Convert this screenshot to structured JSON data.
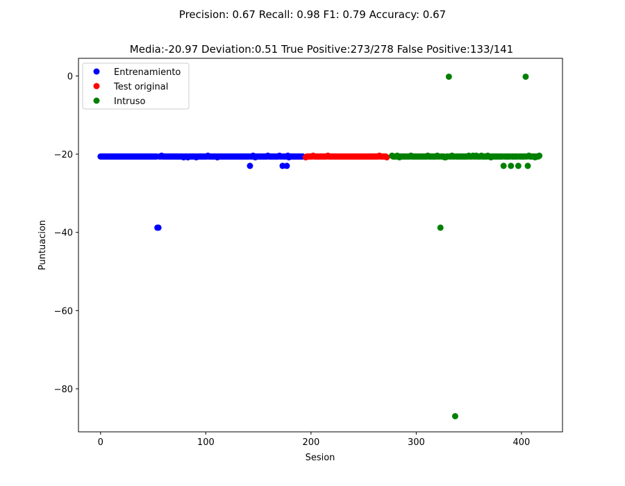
{
  "chart_data": {
    "type": "scatter",
    "suptitle": "Precision: 0.67 Recall: 0.98 F1: 0.79 Accuracy: 0.67",
    "title": "Media:-20.97 Deviation:0.51 True Positive:273/278 False Positive:133/141",
    "xlabel": "Sesion",
    "ylabel": "Puntuacion",
    "xlim": [
      -21,
      439
    ],
    "ylim": [
      -91,
      4.5
    ],
    "x_ticks": [
      0,
      100,
      200,
      300,
      400
    ],
    "y_ticks": [
      0,
      -20,
      -40,
      -60,
      -80
    ],
    "grid": false,
    "legend_position": "top-left",
    "series": [
      {
        "name": "Entrenamiento",
        "color": "#0000ff",
        "x_start": 0,
        "values": [
          -20.6,
          -20.6,
          -20.6,
          -20.6,
          -20.6,
          -20.6,
          -20.6,
          -20.6,
          -20.6,
          -20.6,
          -20.6,
          -20.6,
          -20.6,
          -20.6,
          -20.6,
          -20.6,
          -20.6,
          -20.6,
          -20.6,
          -20.6,
          -20.6,
          -20.6,
          -20.6,
          -20.6,
          -20.6,
          -20.6,
          -20.6,
          -20.6,
          -20.6,
          -20.6,
          -20.6,
          -20.6,
          -20.6,
          -20.6,
          -20.6,
          -20.6,
          -20.6,
          -20.6,
          -20.6,
          -20.6,
          -20.6,
          -20.6,
          -20.6,
          -20.6,
          -20.6,
          -20.6,
          -20.6,
          -20.6,
          -20.6,
          -20.6,
          -20.6,
          -20.6,
          -20.6,
          -20.6,
          -38.8,
          -38.8,
          -20.6,
          -20.6,
          -20.4,
          -20.6,
          -20.6,
          -20.6,
          -20.6,
          -20.6,
          -20.6,
          -20.6,
          -20.6,
          -20.6,
          -20.6,
          -20.6,
          -20.6,
          -20.6,
          -20.6,
          -20.6,
          -20.6,
          -20.6,
          -20.6,
          -20.6,
          -20.6,
          -20.8,
          -20.6,
          -20.6,
          -20.6,
          -20.8,
          -20.6,
          -20.6,
          -20.6,
          -20.6,
          -20.6,
          -20.6,
          -20.6,
          -20.8,
          -20.6,
          -20.6,
          -20.6,
          -20.6,
          -20.6,
          -20.6,
          -20.6,
          -20.6,
          -20.6,
          -20.6,
          -20.4,
          -20.6,
          -20.6,
          -20.6,
          -20.6,
          -20.6,
          -20.6,
          -20.6,
          -20.6,
          -20.8,
          -20.6,
          -20.6,
          -20.6,
          -20.6,
          -20.6,
          -20.6,
          -20.6,
          -20.6,
          -20.6,
          -20.6,
          -20.6,
          -20.6,
          -20.6,
          -20.6,
          -20.6,
          -20.6,
          -20.6,
          -20.6,
          -20.6,
          -20.6,
          -20.6,
          -20.6,
          -20.6,
          -20.6,
          -20.6,
          -20.6,
          -20.6,
          -20.6,
          -20.6,
          -20.6,
          -23.0,
          -20.6,
          -20.6,
          -20.4,
          -20.6,
          -20.8,
          -20.6,
          -20.6,
          -20.6,
          -20.6,
          -20.6,
          -20.6,
          -20.6,
          -20.6,
          -20.6,
          -20.6,
          -20.6,
          -20.4,
          -20.6,
          -20.6,
          -20.6,
          -20.6,
          -20.6,
          -20.6,
          -20.6,
          -20.6,
          -20.6,
          -20.6,
          -20.4,
          -20.6,
          -20.6,
          -23.0,
          -20.6,
          -20.6,
          -20.6,
          -23.0,
          -20.4,
          -20.8,
          -20.6,
          -20.6,
          -20.6,
          -20.6,
          -20.6,
          -20.6,
          -20.6,
          -20.6,
          -20.6,
          -20.6,
          -20.6,
          -20.6,
          -20.6
        ]
      },
      {
        "name": "Test original",
        "color": "#ff0000",
        "x_start": 195,
        "values": [
          -20.8,
          -20.6,
          -20.6,
          -20.6,
          -20.6,
          -20.6,
          -20.6,
          -20.4,
          -20.6,
          -20.6,
          -20.6,
          -20.6,
          -20.6,
          -20.6,
          -20.6,
          -20.6,
          -20.6,
          -20.6,
          -20.6,
          -20.6,
          -20.6,
          -20.4,
          -20.6,
          -20.6,
          -20.6,
          -20.6,
          -20.6,
          -20.6,
          -20.6,
          -20.6,
          -20.6,
          -20.6,
          -20.6,
          -20.6,
          -20.6,
          -20.6,
          -20.6,
          -20.6,
          -20.6,
          -20.6,
          -20.6,
          -20.6,
          -20.6,
          -20.6,
          -20.6,
          -20.6,
          -20.6,
          -20.6,
          -20.6,
          -20.6,
          -20.6,
          -20.6,
          -20.6,
          -20.6,
          -20.6,
          -20.6,
          -20.6,
          -20.6,
          -20.6,
          -20.6,
          -20.6,
          -20.6,
          -20.6,
          -20.6,
          -20.6,
          -20.6,
          -20.6,
          -20.6,
          -20.6,
          -20.6,
          -20.4,
          -20.6,
          -20.6,
          -20.6,
          -20.6,
          -20.6,
          -20.6,
          -20.8
        ]
      },
      {
        "name": "Intruso",
        "color": "#008000",
        "x_start": 277,
        "values": [
          -20.4,
          -20.6,
          -20.6,
          -20.6,
          -20.6,
          -20.4,
          -20.6,
          -20.8,
          -20.6,
          -20.6,
          -20.6,
          -20.6,
          -20.6,
          -20.6,
          -20.6,
          -20.6,
          -20.6,
          -20.6,
          -20.4,
          -20.6,
          -20.6,
          -20.6,
          -20.6,
          -20.6,
          -20.6,
          -20.6,
          -20.6,
          -20.6,
          -20.6,
          -20.6,
          -20.6,
          -20.6,
          -20.6,
          -20.6,
          -20.4,
          -20.6,
          -20.6,
          -20.6,
          -20.6,
          -20.6,
          -20.6,
          -20.6,
          -20.6,
          -20.4,
          -20.6,
          -20.6,
          -38.8,
          -20.6,
          -20.6,
          -20.6,
          -20.8,
          -20.8,
          -20.6,
          -20.6,
          -0.2,
          -20.6,
          -20.6,
          -20.4,
          -20.6,
          -20.6,
          -87.0,
          -20.6,
          -20.6,
          -20.6,
          -20.6,
          -20.6,
          -20.6,
          -20.6,
          -20.6,
          -20.6,
          -20.6,
          -20.6,
          -20.6,
          -20.4,
          -20.6,
          -20.6,
          -20.6,
          -20.4,
          -20.6,
          -20.6,
          -20.4,
          -20.6,
          -20.6,
          -20.6,
          -20.6,
          -20.4,
          -20.6,
          -20.6,
          -20.6,
          -20.6,
          -20.6,
          -20.4,
          -20.6,
          -20.6,
          -20.8,
          -20.6,
          -20.6,
          -20.6,
          -20.6,
          -20.6,
          -20.6,
          -20.6,
          -20.6,
          -20.6,
          -20.6,
          -20.6,
          -23.0,
          -20.6,
          -20.6,
          -20.6,
          -20.6,
          -20.6,
          -20.6,
          -23.0,
          -20.6,
          -20.6,
          -20.6,
          -20.6,
          -20.6,
          -20.6,
          -23.0,
          -20.6,
          -20.6,
          -20.6,
          -20.6,
          -20.6,
          -20.6,
          -0.2,
          -20.6,
          -23.0,
          -20.4,
          -20.6,
          -20.6,
          -20.6,
          -20.6,
          -20.6,
          -20.8,
          -20.6,
          -20.6,
          -20.6,
          -20.4
        ]
      }
    ]
  }
}
